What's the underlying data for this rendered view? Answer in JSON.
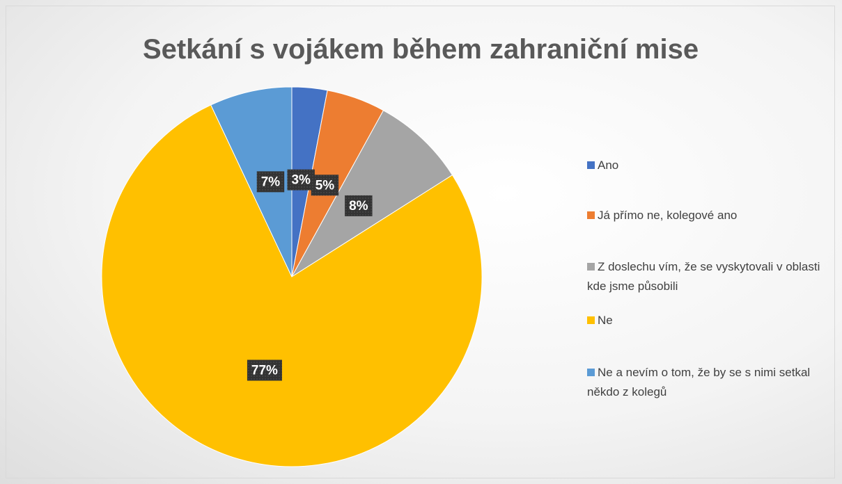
{
  "chart_data": {
    "type": "pie",
    "title": "Setkání s vojákem během zahraniční mise",
    "categories": [
      "Ano",
      "Já přímo ne, kolegové ano",
      "Z doslechu vím, že se vyskytovali v oblasti kde jsme působili",
      "Ne",
      "Ne a nevím o tom, že by se s nimi setkal někdo z kolegů"
    ],
    "values": [
      3,
      5,
      8,
      77,
      7
    ],
    "value_labels": [
      "3%",
      "5%",
      "8%",
      "77%",
      "7%"
    ],
    "colors": [
      "#4472c4",
      "#ed7d31",
      "#a5a5a5",
      "#ffc000",
      "#5b9bd5"
    ],
    "legend": "right"
  }
}
